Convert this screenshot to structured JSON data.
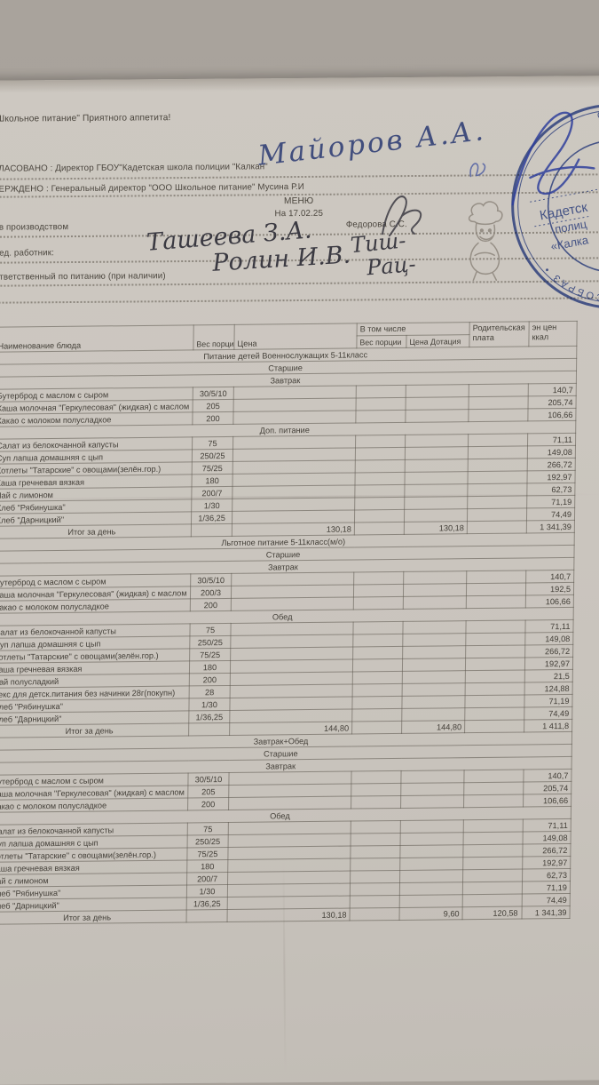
{
  "colors": {
    "background": "#a6a099",
    "paper": "#cbc6bf",
    "stamp_blue": "#3f57a7",
    "ink_blue": "#414e7d",
    "ink_dark": "#3b3a42"
  },
  "header": {
    "slogan": "Школьное питание\" Приятного аппетита!",
    "agreed_line": "ЛАСОВАНО : Директор ГБОУ\"Кадетская школа полиции \"Калкан\"",
    "agreed_signature": "Майоров А.А.",
    "approved_line": "ЕРЖДЕНО : Генеральный директор \"ООО Школьное питание\" Мусина Р.И",
    "menu_title": "МЕНЮ",
    "menu_date": "На 17.02.25",
    "production_label": "в производством",
    "production_name": "Федорова С.С.",
    "worker_label": "ед. работник:",
    "worker_signature": "Ташеева  З.А.",
    "worker_paraph": "Тиш-",
    "responsible_label": "тветственный по питанию (при наличии)",
    "responsible_signature": "Ролин  И.В.",
    "responsible_paraph": "Рац-"
  },
  "stamp": {
    "ring_text": "ОГРН • ОБРАЗ • СОБРАЗ • ОГРН • ОБРАЗ • СОБРАЗ •",
    "line1": "Кадетск",
    "line2": "полиц",
    "line3": "«Калка"
  },
  "table": {
    "header": {
      "col_dish": "Наименование блюда",
      "col_portion": "Вес порции",
      "col_price": "Цена",
      "col_including": "В том числе",
      "col_incl_portion": "Вес порции",
      "col_incl_subsidy": "Цена Дотация",
      "col_parent_fee": "Родительская плата",
      "col_energy": "эн цен ккал"
    },
    "rows": [
      {
        "t": "section",
        "label": "Питание детей Военнослужащих 5-11класс"
      },
      {
        "t": "section",
        "label": "Старшие"
      },
      {
        "t": "section",
        "label": "Завтрак"
      },
      {
        "t": "dish",
        "name": "Бутерброд с маслом с сыром",
        "portion": "30/5/10",
        "kcal": "140,7"
      },
      {
        "t": "dish",
        "name": "Каша молочная \"Геркулесовая\" (жидкая) с маслом",
        "portion": "205",
        "kcal": "205,74"
      },
      {
        "t": "dish",
        "name": "Какао с молоком полусладкое",
        "portion": "200",
        "kcal": "106,66"
      },
      {
        "t": "section",
        "label": "Доп. питание"
      },
      {
        "t": "dish",
        "name": "Салат из белокочанной капусты",
        "portion": "75",
        "kcal": "71,11"
      },
      {
        "t": "dish",
        "name": "Суп лапша домашняя с цып",
        "portion": "250/25",
        "kcal": "149,08"
      },
      {
        "t": "dish",
        "name": "Котлеты \"Татарские\" с овощами(зелён.гор.)",
        "portion": "75/25",
        "kcal": "266,72"
      },
      {
        "t": "dish",
        "name": "Каша гречневая вязкая",
        "portion": "180",
        "kcal": "192,97"
      },
      {
        "t": "dish",
        "name": "Чай с лимоном",
        "portion": "200/7",
        "kcal": "62,73"
      },
      {
        "t": "dish",
        "name": "Хлеб \"Рябинушка\"",
        "portion": "1/30",
        "kcal": "71,19"
      },
      {
        "t": "dish",
        "name": "Хлеб \"Дарницкий\"",
        "portion": "1/36,25",
        "kcal": "74,49"
      },
      {
        "t": "total",
        "label": "Итог за день",
        "price": "130,18",
        "subsidy": "130,18",
        "parent": "",
        "kcal": "1 341,39"
      },
      {
        "t": "section",
        "label": "Льготное питание 5-11класс(м/о)"
      },
      {
        "t": "section",
        "label": "Старшие"
      },
      {
        "t": "section",
        "label": "Завтрак"
      },
      {
        "t": "dish",
        "name": "Бутерброд с маслом с сыром",
        "portion": "30/5/10",
        "kcal": "140,7"
      },
      {
        "t": "dish",
        "name": "Каша молочная \"Геркулесовая\" (жидкая) с маслом",
        "portion": "200/3",
        "kcal": "192,5"
      },
      {
        "t": "dish",
        "name": "Какао с молоком полусладкое",
        "portion": "200",
        "kcal": "106,66"
      },
      {
        "t": "section",
        "label": "Обед"
      },
      {
        "t": "dish",
        "name": "Салат из белокочанной капусты",
        "portion": "75",
        "kcal": "71,11"
      },
      {
        "t": "dish",
        "name": "Суп лапша домашняя с цып",
        "portion": "250/25",
        "kcal": "149,08"
      },
      {
        "t": "dish",
        "name": "Котлеты \"Татарские\" с овощами(зелён.гор.)",
        "portion": "75/25",
        "kcal": "266,72"
      },
      {
        "t": "dish",
        "name": "Каша гречневая вязкая",
        "portion": "180",
        "kcal": "192,97"
      },
      {
        "t": "dish",
        "name": "Чай полусладкий",
        "portion": "200",
        "kcal": "21,5"
      },
      {
        "t": "dish",
        "name": "Кекс для детск.питания без начинки 28г(покупн)",
        "portion": "28",
        "kcal": "124,88"
      },
      {
        "t": "dish",
        "name": "Хлеб \"Рябинушка\"",
        "portion": "1/30",
        "kcal": "71,19"
      },
      {
        "t": "dish",
        "name": "Хлеб \"Дарницкий\"",
        "portion": "1/36,25",
        "kcal": "74,49"
      },
      {
        "t": "total",
        "label": "Итог за день",
        "price": "144,80",
        "subsidy": "144,80",
        "parent": "",
        "kcal": "1 411,8"
      },
      {
        "t": "section",
        "label": "Завтрак+Обед"
      },
      {
        "t": "section",
        "label": "Старшие"
      },
      {
        "t": "section",
        "label": "Завтрак"
      },
      {
        "t": "dish",
        "name": "Бутерброд с маслом с сыром",
        "portion": "30/5/10",
        "kcal": "140,7"
      },
      {
        "t": "dish",
        "name": "Каша молочная \"Геркулесовая\" (жидкая) с маслом",
        "portion": "205",
        "kcal": "205,74"
      },
      {
        "t": "dish",
        "name": "Какао с молоком полусладкое",
        "portion": "200",
        "kcal": "106,66"
      },
      {
        "t": "section",
        "label": "Обед"
      },
      {
        "t": "dish",
        "name": "Салат из белокочанной капусты",
        "portion": "75",
        "kcal": "71,11"
      },
      {
        "t": "dish",
        "name": "Суп лапша домашняя с цып",
        "portion": "250/25",
        "kcal": "149,08"
      },
      {
        "t": "dish",
        "name": "Котлеты \"Татарские\" с овощами(зелён.гор.)",
        "portion": "75/25",
        "kcal": "266,72"
      },
      {
        "t": "dish",
        "name": "Каша гречневая вязкая",
        "portion": "180",
        "kcal": "192,97"
      },
      {
        "t": "dish",
        "name": "Чай с лимоном",
        "portion": "200/7",
        "kcal": "62,73"
      },
      {
        "t": "dish",
        "name": "Хлеб \"Рябинушка\"",
        "portion": "1/30",
        "kcal": "71,19"
      },
      {
        "t": "dish",
        "name": "Хлеб \"Дарницкий\"",
        "portion": "1/36,25",
        "kcal": "74,49"
      },
      {
        "t": "total",
        "label": "Итог за день",
        "price": "130,18",
        "subsidy": "9,60",
        "parent": "120,58",
        "kcal": "1 341,39"
      }
    ]
  }
}
